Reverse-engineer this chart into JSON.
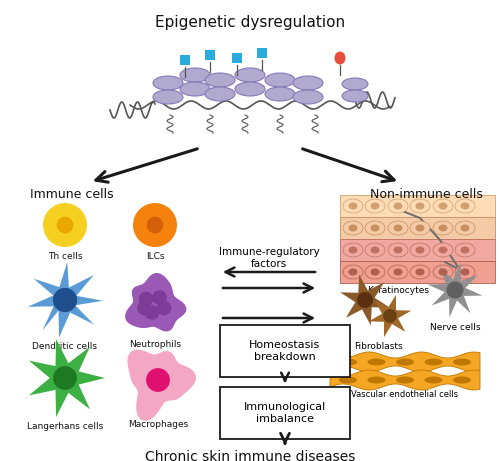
{
  "title": "Epigenetic dysregulation",
  "bottom_label": "Chronic skin immune diseases",
  "immune_label": "Immune cells",
  "nonimmune_label": "Non-immune cells",
  "immune_reg_label": "Immune-regulatory\nfactors",
  "homeostasis_label": "Homeostasis\nbreakdown",
  "immunological_label": "Immunological\nimbalance",
  "bg_color": "#ffffff",
  "arrow_color": "#1a1a1a",
  "box_color": "#ffffff",
  "box_edge": "#1a1a1a",
  "histone_color": "#b0aacf",
  "histone_edge": "#8878b8",
  "dna_color": "#555555",
  "diamond_color": "#29ABDE",
  "red_dot_color": "#E74C3C",
  "th_color": "#F5D020",
  "th_inner": "#E8A800",
  "ilc_color": "#F5820D",
  "ilc_inner": "#D4600A",
  "dendrite_color": "#5B9BD5",
  "dendrite_core": "#1F4E8C",
  "neutrophil_color": "#9B59B6",
  "neutrophil_spots": "#7D3C98",
  "langerhans_color": "#3CB043",
  "langerhans_core": "#1D7A22",
  "macrophage_color": "#F4A7C3",
  "macrophage_nucleus": "#E01070",
  "keratinocyte_top": "#F5CBA7",
  "keratinocyte_top2": "#FDDCB5",
  "keratinocyte_mid": "#F1A8A0",
  "keratinocyte_bot": "#F0A090",
  "keratinocyte_edge": "#C08060",
  "fibroblast_color": "#8B5A2B",
  "nerve_color": "#909090",
  "nerve_core": "#606060",
  "vascular_color": "#F5A623",
  "vascular_edge": "#C07800"
}
